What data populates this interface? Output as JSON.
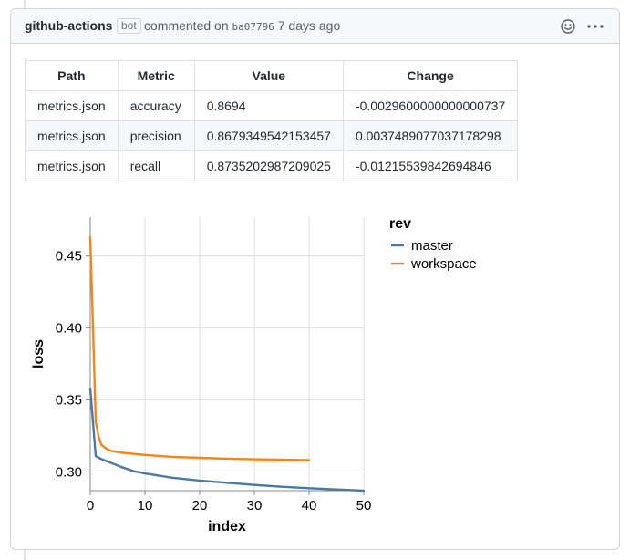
{
  "comment": {
    "author": "github-actions",
    "badge": "bot",
    "action_text": "commented on",
    "commit_sha": "ba07796",
    "time_ago": "7 days ago"
  },
  "table": {
    "headers": [
      "Path",
      "Metric",
      "Value",
      "Change"
    ],
    "rows": [
      [
        "metrics.json",
        "accuracy",
        "0.8694",
        "-0.0029600000000000737"
      ],
      [
        "metrics.json",
        "precision",
        "0.8679349542153457",
        "0.0037489077037178298"
      ],
      [
        "metrics.json",
        "recall",
        "0.8735202987209025",
        "-0.01215539842694846"
      ]
    ]
  },
  "chart_data": {
    "type": "line",
    "xlabel": "index",
    "ylabel": "loss",
    "xlim": [
      0,
      50
    ],
    "ylim": [
      0.287,
      0.477
    ],
    "x_ticks": [
      0,
      10,
      20,
      30,
      40,
      50
    ],
    "y_ticks": [
      0.3,
      0.35,
      0.4,
      0.45
    ],
    "x_tick_labels": [
      "0",
      "10",
      "20",
      "30",
      "40",
      "50"
    ],
    "y_tick_labels": [
      "0.30",
      "0.35",
      "0.40",
      "0.45"
    ],
    "grid": true,
    "legend": {
      "title": "rev",
      "position": "right"
    },
    "series": [
      {
        "name": "master",
        "color": "#4c78a8",
        "x": [
          0,
          1,
          2,
          4,
          6,
          8,
          10,
          15,
          20,
          25,
          30,
          35,
          40,
          45,
          50
        ],
        "y": [
          0.358,
          0.311,
          0.309,
          0.306,
          0.303,
          0.3005,
          0.299,
          0.296,
          0.294,
          0.2925,
          0.291,
          0.2897,
          0.2887,
          0.2878,
          0.287
        ]
      },
      {
        "name": "workspace",
        "color": "#f58518",
        "x": [
          0,
          0.5,
          1,
          1.5,
          2,
          3,
          4,
          6,
          8,
          10,
          15,
          20,
          25,
          30,
          35,
          40
        ],
        "y": [
          0.463,
          0.4,
          0.335,
          0.325,
          0.319,
          0.316,
          0.3145,
          0.3133,
          0.3125,
          0.3118,
          0.3105,
          0.3098,
          0.3092,
          0.3088,
          0.3085,
          0.3082
        ]
      }
    ]
  }
}
